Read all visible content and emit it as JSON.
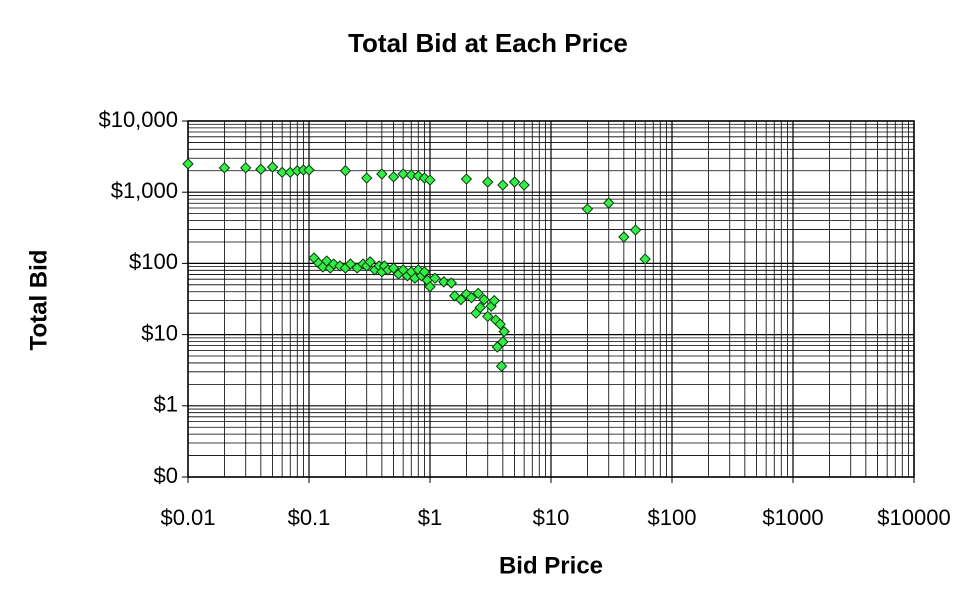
{
  "chart_data": {
    "type": "scatter",
    "title": "Total Bid at Each Price",
    "x_label": "Bid Price",
    "y_label": "Total Bid",
    "log_x": true,
    "log_y": true,
    "grid": true,
    "minor_grid": true,
    "xlim": [
      0.01,
      10000
    ],
    "ylim": [
      0.1,
      10000
    ],
    "xticks": [
      {
        "value": 0.01,
        "label": "$0.01"
      },
      {
        "value": 0.1,
        "label": "$0.1"
      },
      {
        "value": 1,
        "label": "$1"
      },
      {
        "value": 10,
        "label": "$10"
      },
      {
        "value": 100,
        "label": "$100"
      },
      {
        "value": 1000,
        "label": "$1000"
      },
      {
        "value": 10000,
        "label": "$10000"
      }
    ],
    "yticks": [
      {
        "value": 0.1,
        "label": "$0"
      },
      {
        "value": 1,
        "label": "$1"
      },
      {
        "value": 10,
        "label": "$10"
      },
      {
        "value": 100,
        "label": "$100"
      },
      {
        "value": 1000,
        "label": "$1,000"
      },
      {
        "value": 10000,
        "label": "$10,000"
      }
    ],
    "series": [
      {
        "color": "#33ee44",
        "x": [
          0.01,
          0.02,
          0.03,
          0.04,
          0.05,
          0.06,
          0.07,
          0.08,
          0.09,
          0.1,
          0.2,
          0.3,
          0.4,
          0.5,
          0.6,
          0.7,
          0.8,
          0.9,
          1.0,
          2,
          3,
          4,
          5,
          6,
          20,
          30,
          40,
          50,
          60,
          0.11,
          0.12,
          0.13,
          0.14,
          0.15,
          0.16,
          0.18,
          0.2,
          0.22,
          0.25,
          0.28,
          0.3,
          0.32,
          0.35,
          0.38,
          0.4,
          0.42,
          0.45,
          0.5,
          0.55,
          0.6,
          0.65,
          0.7,
          0.75,
          0.8,
          0.85,
          0.9,
          0.95,
          1.0,
          1.1,
          1.3,
          1.5,
          1.6,
          1.8,
          2.0,
          2.2,
          2.4,
          2.5,
          2.6,
          2.8,
          3.0,
          3.2,
          3.4,
          3.5,
          3.6,
          3.8,
          4.0,
          3.9,
          4.1
        ],
        "values": [
          2500,
          2200,
          2200,
          2100,
          2250,
          1900,
          1900,
          2000,
          2050,
          2050,
          2000,
          1580,
          1800,
          1640,
          1800,
          1740,
          1690,
          1580,
          1480,
          1530,
          1390,
          1260,
          1390,
          1260,
          580,
          705,
          235,
          294,
          115,
          119,
          101,
          89,
          108,
          86,
          98,
          92,
          86,
          98,
          86,
          98,
          92,
          105,
          81,
          92,
          76,
          92,
          81,
          86,
          71,
          81,
          67,
          76,
          62,
          81,
          67,
          76,
          58,
          47,
          62,
          55,
          53,
          35,
          31,
          37,
          33,
          20,
          38,
          24,
          31,
          18,
          25,
          30,
          16,
          6.7,
          14,
          7.9,
          3.6,
          11
        ]
      }
    ]
  }
}
